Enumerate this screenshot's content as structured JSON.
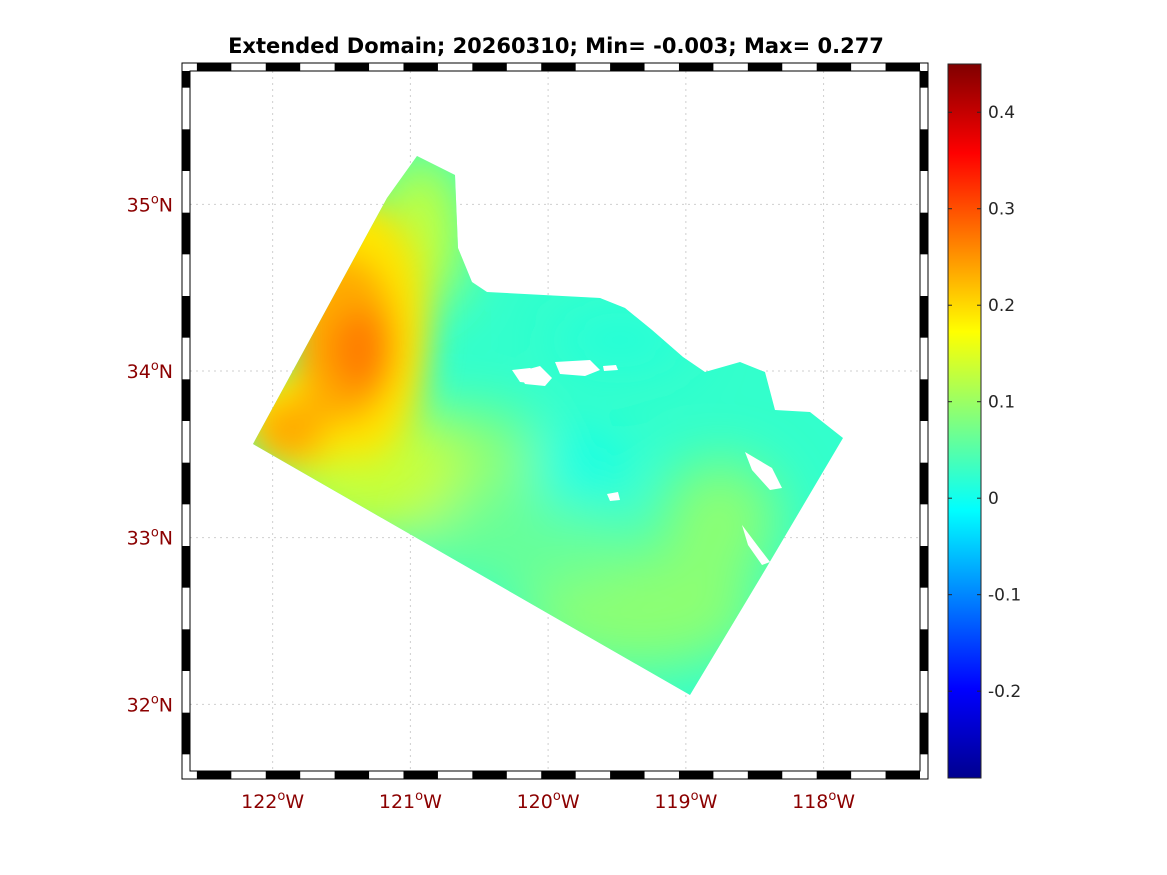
{
  "map": {
    "title": "Extended Domain; 20260310; Min= -0.003; Max= 0.277",
    "lon_ticks": [
      {
        "value": -122,
        "deg": "122",
        "hemi": "W"
      },
      {
        "value": -121,
        "deg": "121",
        "hemi": "W"
      },
      {
        "value": -120,
        "deg": "120",
        "hemi": "W"
      },
      {
        "value": -119,
        "deg": "119",
        "hemi": "W"
      },
      {
        "value": -118,
        "deg": "118",
        "hemi": "W"
      }
    ],
    "lat_ticks": [
      {
        "value": 35,
        "deg": "35",
        "hemi": "N"
      },
      {
        "value": 34,
        "deg": "34",
        "hemi": "N"
      },
      {
        "value": 33,
        "deg": "33",
        "hemi": "N"
      },
      {
        "value": 32,
        "deg": "32",
        "hemi": "N"
      }
    ],
    "degree_symbol": "o",
    "lon_range": [
      -122.6,
      -117.3
    ],
    "lat_range": [
      31.6,
      35.8
    ],
    "grid": true,
    "frame": "black-white-alternating",
    "colormap": "jet"
  },
  "colorbar": {
    "range": [
      -0.29,
      0.45
    ],
    "ticks": [
      {
        "value": 0.4,
        "label": "0.4"
      },
      {
        "value": 0.3,
        "label": "0.3"
      },
      {
        "value": 0.2,
        "label": "0.2"
      },
      {
        "value": 0.1,
        "label": "0.1"
      },
      {
        "value": 0,
        "label": "0"
      },
      {
        "value": -0.1,
        "label": "-0.1"
      },
      {
        "value": -0.2,
        "label": "-0.2"
      }
    ],
    "placement": "right"
  }
}
